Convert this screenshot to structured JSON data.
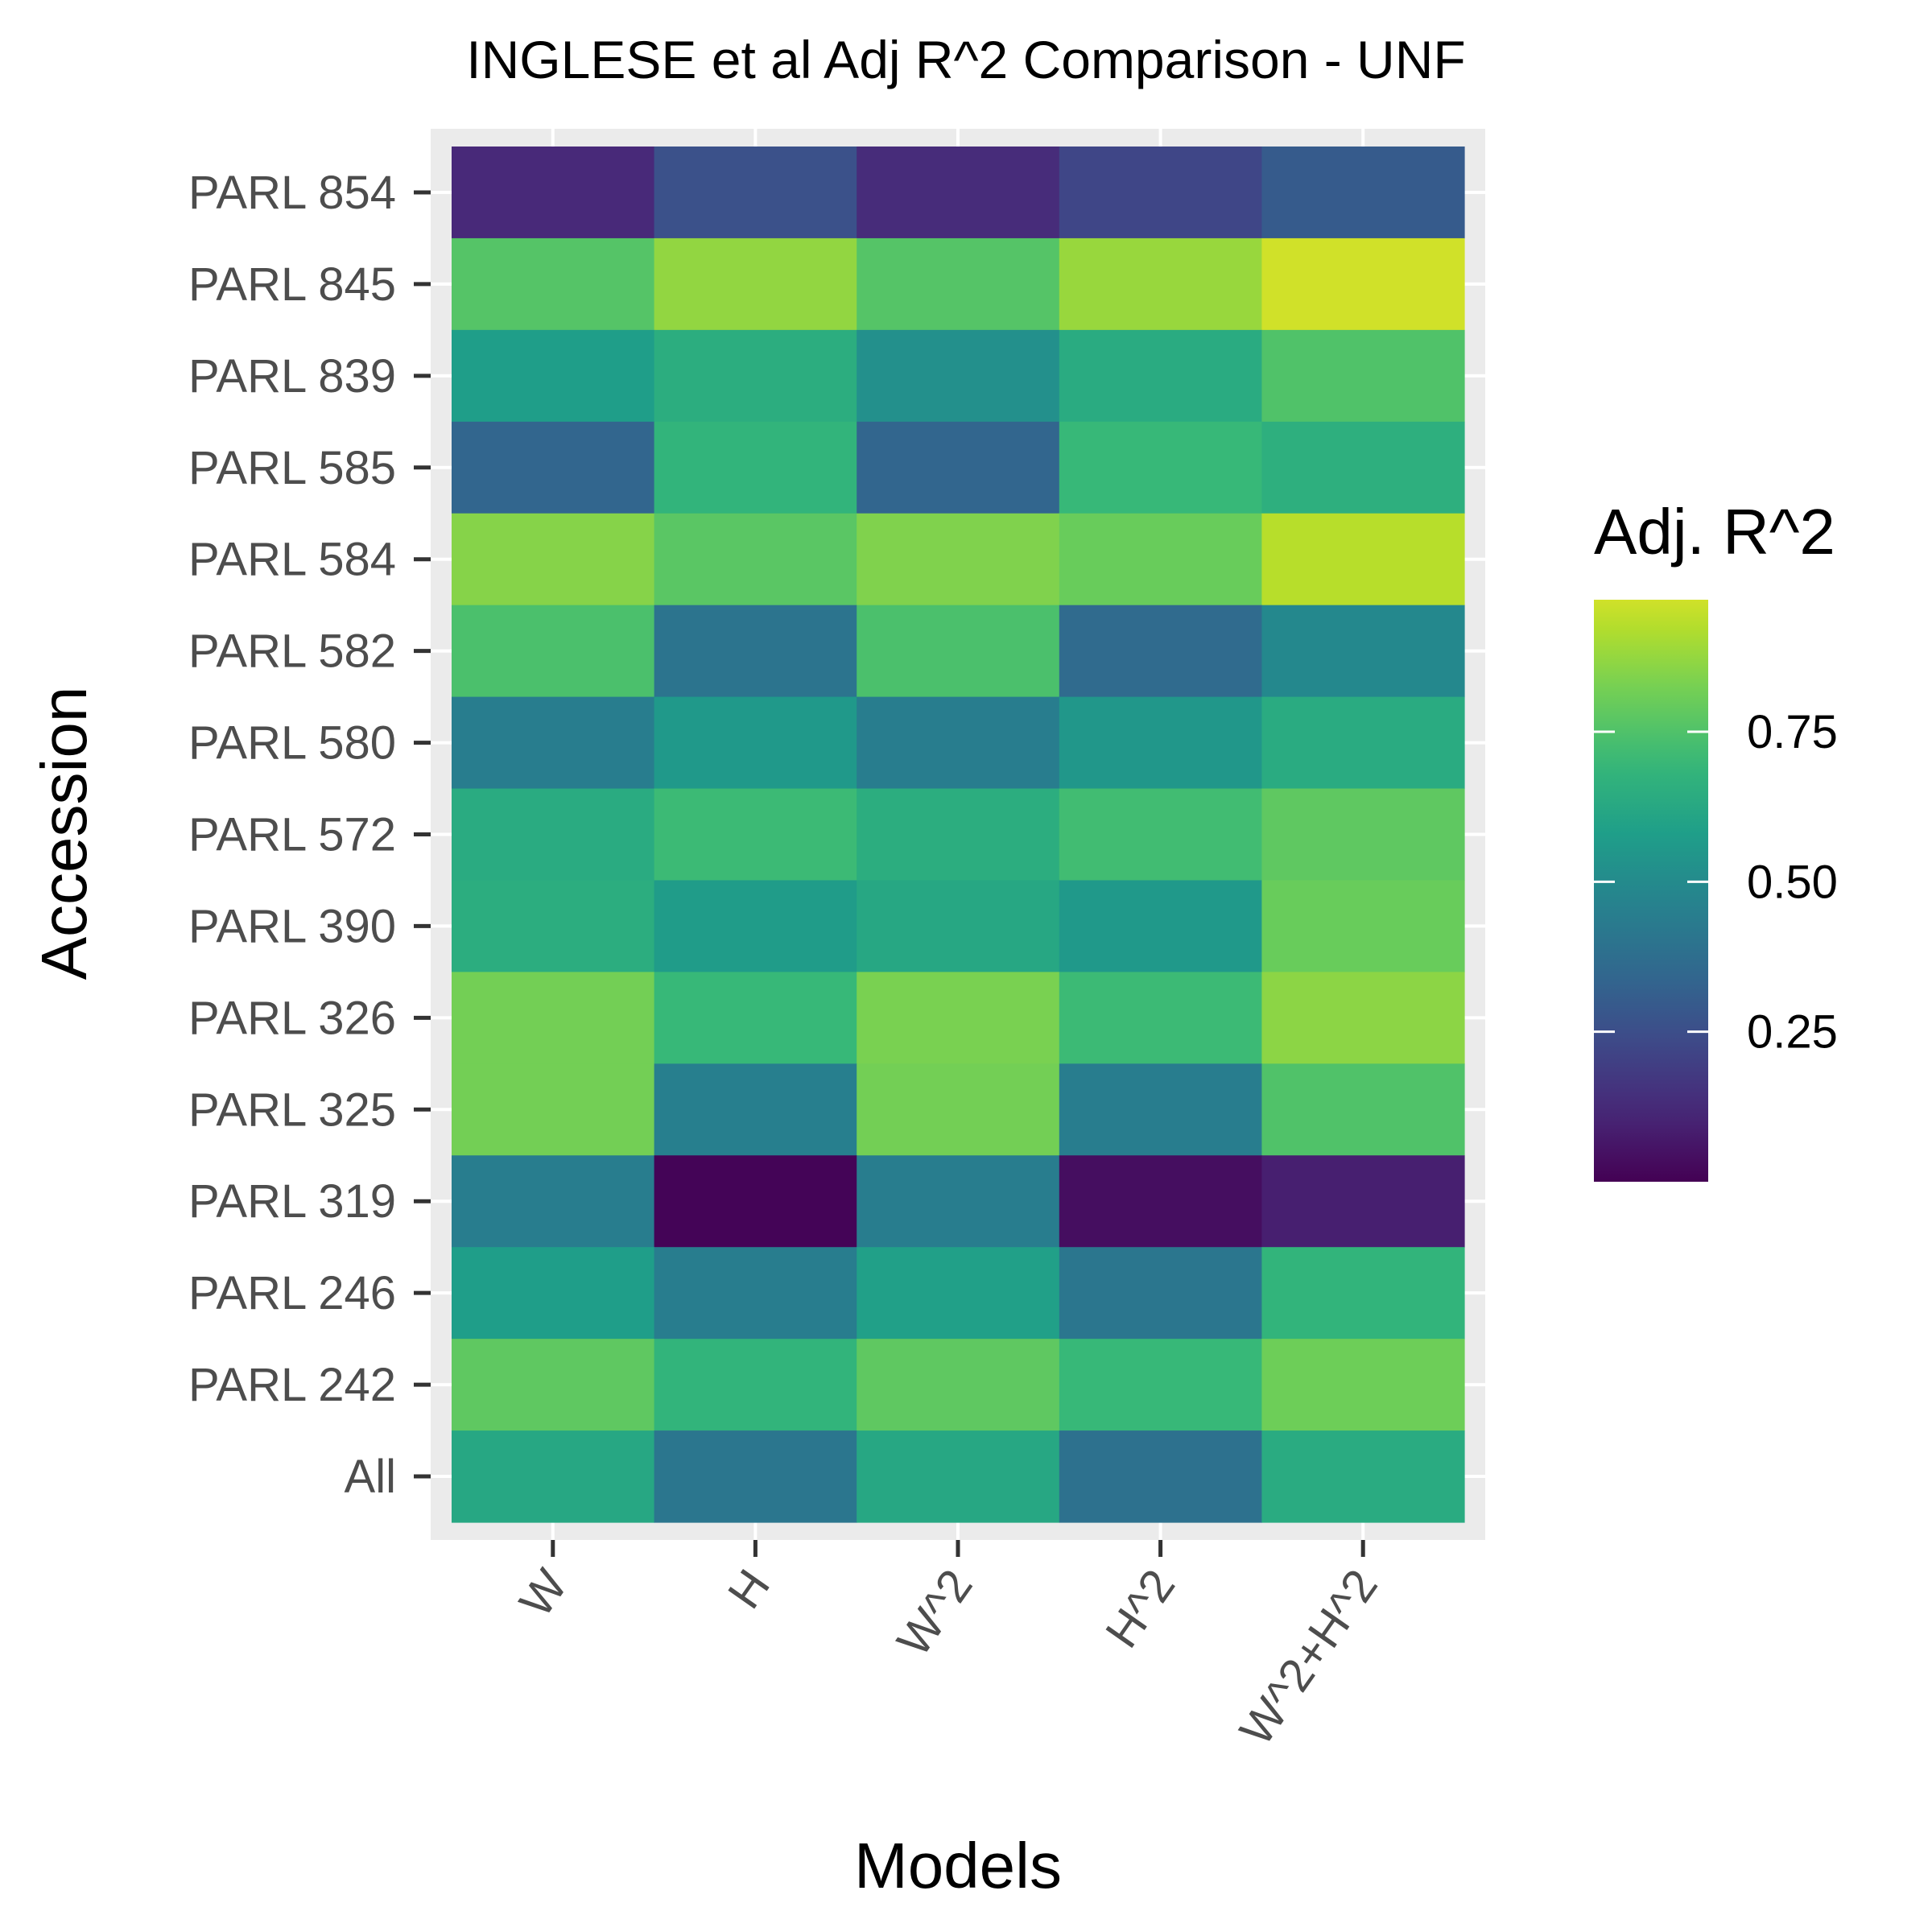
{
  "chart_data": {
    "type": "heatmap",
    "title": "INGLESE et al Adj R^2 Comparison - UNF",
    "xlabel": "Models",
    "ylabel": "Accession",
    "x_categories": [
      "W",
      "H",
      "W^2",
      "H^2",
      "W^2+H^2"
    ],
    "y_categories": [
      "PARL 854",
      "PARL 845",
      "PARL 839",
      "PARL 585",
      "PARL 584",
      "PARL 582",
      "PARL 580",
      "PARL 572",
      "PARL 390",
      "PARL 326",
      "PARL 325",
      "PARL 319",
      "PARL 246",
      "PARL 242",
      "All"
    ],
    "values": [
      [
        0.12,
        0.26,
        0.13,
        0.22,
        0.3
      ],
      [
        0.76,
        0.87,
        0.76,
        0.88,
        0.97
      ],
      [
        0.58,
        0.65,
        0.52,
        0.64,
        0.75
      ],
      [
        0.34,
        0.68,
        0.34,
        0.7,
        0.66
      ],
      [
        0.85,
        0.77,
        0.84,
        0.8,
        0.93
      ],
      [
        0.74,
        0.4,
        0.74,
        0.36,
        0.49
      ],
      [
        0.44,
        0.56,
        0.44,
        0.55,
        0.64
      ],
      [
        0.64,
        0.71,
        0.65,
        0.72,
        0.78
      ],
      [
        0.65,
        0.57,
        0.62,
        0.56,
        0.8
      ],
      [
        0.82,
        0.7,
        0.83,
        0.71,
        0.86
      ],
      [
        0.82,
        0.45,
        0.82,
        0.44,
        0.75
      ],
      [
        0.44,
        0.01,
        0.44,
        0.04,
        0.09
      ],
      [
        0.58,
        0.44,
        0.59,
        0.41,
        0.68
      ],
      [
        0.78,
        0.68,
        0.78,
        0.7,
        0.81
      ],
      [
        0.62,
        0.41,
        0.62,
        0.39,
        0.64
      ]
    ],
    "colorbar": {
      "title": "Adj. R^2",
      "ticks": [
        0.25,
        0.5,
        0.75
      ],
      "tick_labels": [
        "0.25",
        "0.50",
        "0.75"
      ],
      "range": [
        0.0,
        0.97
      ],
      "colormap": "viridis"
    },
    "grid": true
  }
}
